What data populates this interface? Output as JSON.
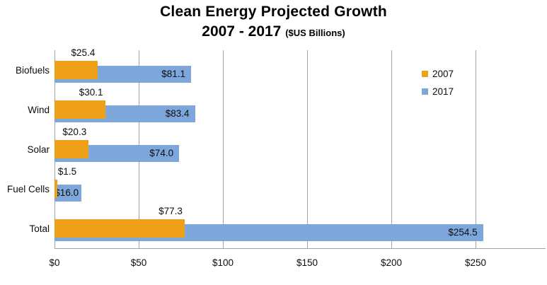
{
  "title": {
    "line1": "Clean Energy Projected Growth",
    "line2": "2007 - 2017",
    "unit_note": "($US Billions)"
  },
  "colors": {
    "series_2007": "#EDA018",
    "series_2017": "#7DA7DB",
    "gridline": "#a3a3a3",
    "text": "#0d0d0d"
  },
  "chart_data": {
    "type": "bar",
    "orientation": "horizontal",
    "title": "Clean Energy Projected Growth 2007 - 2017 ($US Billions)",
    "categories": [
      "Biofuels",
      "Wind",
      "Solar",
      "Fuel Cells",
      "Total"
    ],
    "series": [
      {
        "name": "2007",
        "color": "#EDA018",
        "values": [
          25.4,
          30.1,
          20.3,
          1.5,
          77.3
        ],
        "labels": [
          "$25.4",
          "$30.1",
          "$20.3",
          "$1.5",
          "$77.3"
        ]
      },
      {
        "name": "2017",
        "color": "#7DA7DB",
        "values": [
          81.1,
          83.4,
          74.0,
          16.0,
          254.5
        ],
        "labels": [
          "$81.1",
          "$83.4",
          "$74.0",
          "$16.0",
          "$254.5"
        ]
      }
    ],
    "x_axis": {
      "ticks": [
        0,
        50,
        100,
        150,
        200,
        250
      ],
      "tick_labels": [
        "$0",
        "$50",
        "$100",
        "$150",
        "$200",
        "$250"
      ],
      "min": 0,
      "max": 291
    },
    "grid": true,
    "legend_position": "right-top"
  }
}
